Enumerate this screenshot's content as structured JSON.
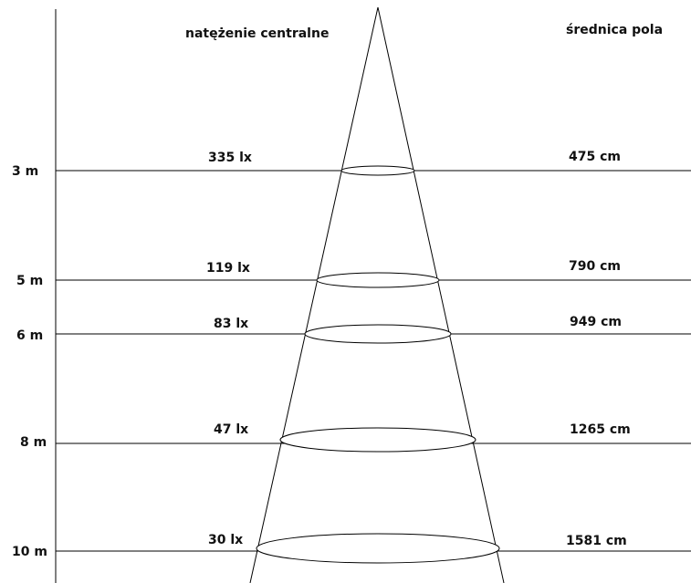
{
  "headers": {
    "left": "natężenie centralne",
    "right": "średnica pola"
  },
  "rows": [
    {
      "distance": "3 m",
      "illuminance": "335 lx",
      "diameter": "475 cm"
    },
    {
      "distance": "5 m",
      "illuminance": "119 lx",
      "diameter": "790 cm"
    },
    {
      "distance": "6 m",
      "illuminance": "83 lx",
      "diameter": "949 cm"
    },
    {
      "distance": "8 m",
      "illuminance": "47 lx",
      "diameter": "1265 cm"
    },
    {
      "distance": "10 m",
      "illuminance": "30 lx",
      "diameter": "1581 cm"
    }
  ],
  "colors": {
    "line": "#000000",
    "text": "#111111",
    "background": "#ffffff"
  }
}
